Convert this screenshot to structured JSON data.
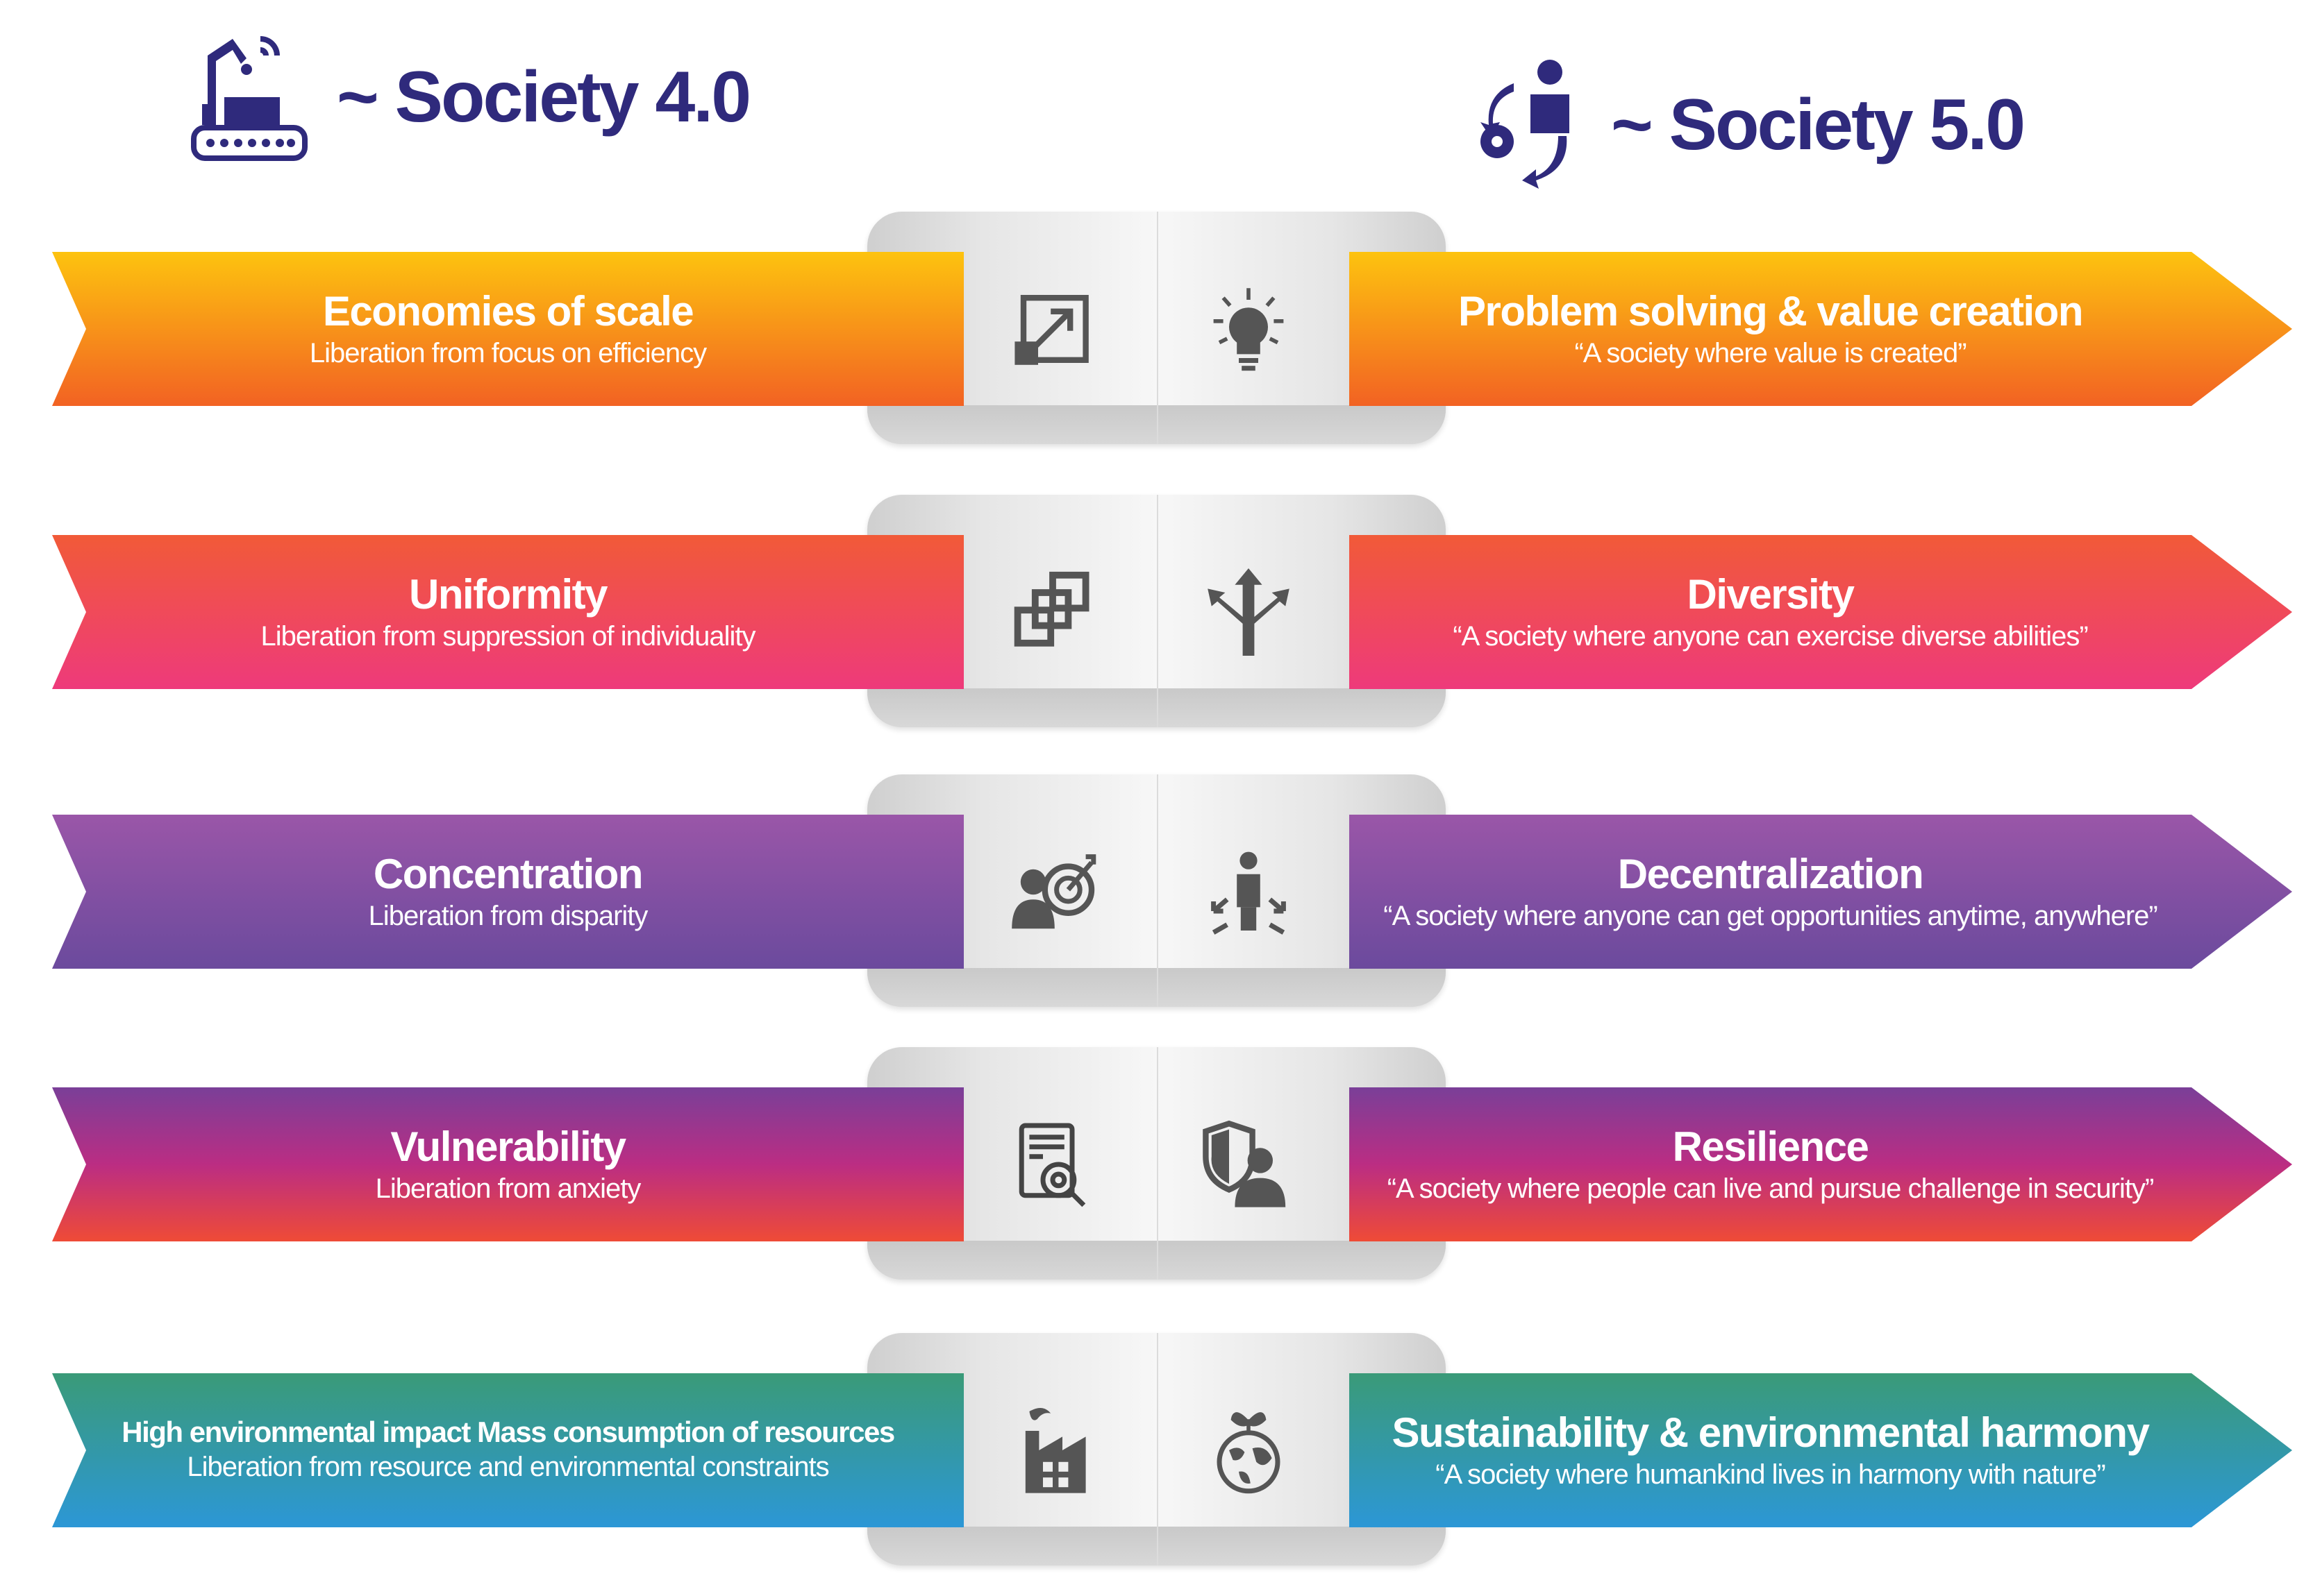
{
  "header": {
    "left": {
      "title": "~ Society 4.0",
      "icon": "factory-robot-icon"
    },
    "right": {
      "title": "~ Society 5.0",
      "icon": "person-gear-cycle-icon"
    },
    "color": "#2f2a7c"
  },
  "rows": [
    {
      "left": {
        "title": "Economies of scale",
        "subtitle": "Liberation from focus on efficiency"
      },
      "right": {
        "title": "Problem solving & value creation",
        "subtitle": "“A society where value is created”"
      },
      "icons": [
        "expand-arrow-icon",
        "lightbulb-icon"
      ],
      "colors": [
        "#fdc30f",
        "#f26223"
      ]
    },
    {
      "left": {
        "title": "Uniformity",
        "subtitle": "Liberation from suppression of individuality"
      },
      "right": {
        "title": "Diversity",
        "subtitle": "“A society where anyone can exercise diverse abilities”"
      },
      "icons": [
        "duplicate-squares-icon",
        "diverging-arrows-icon"
      ],
      "colors": [
        "#f15a38",
        "#ee3a7b"
      ]
    },
    {
      "left": {
        "title": "Concentration",
        "subtitle": "Liberation from disparity"
      },
      "right": {
        "title": "Decentralization",
        "subtitle": "“A society where anyone can get opportunities anytime, anywhere”"
      },
      "icons": [
        "person-target-icon",
        "person-arrows-icon"
      ],
      "colors": [
        "#9a56a8",
        "#6b4a9d"
      ]
    },
    {
      "left": {
        "title": "Vulnerability",
        "subtitle": "Liberation from anxiety"
      },
      "right": {
        "title": "Resilience",
        "subtitle": "“A society where people can live and pursue challenge in security”"
      },
      "icons": [
        "data-search-icon",
        "shield-person-icon"
      ],
      "colors": [
        "#7a3f98",
        "#ef4b36"
      ]
    },
    {
      "left": {
        "title": "High environmental impact Mass consumption of resources",
        "subtitle": "Liberation from resource and environmental constraints"
      },
      "right": {
        "title": "Sustainability & environmental harmony",
        "subtitle": "“A society where humankind lives in harmony with nature”"
      },
      "icons": [
        "factory-icon",
        "globe-sprout-icon"
      ],
      "colors": [
        "#3a9a78",
        "#2c97d6"
      ]
    }
  ]
}
